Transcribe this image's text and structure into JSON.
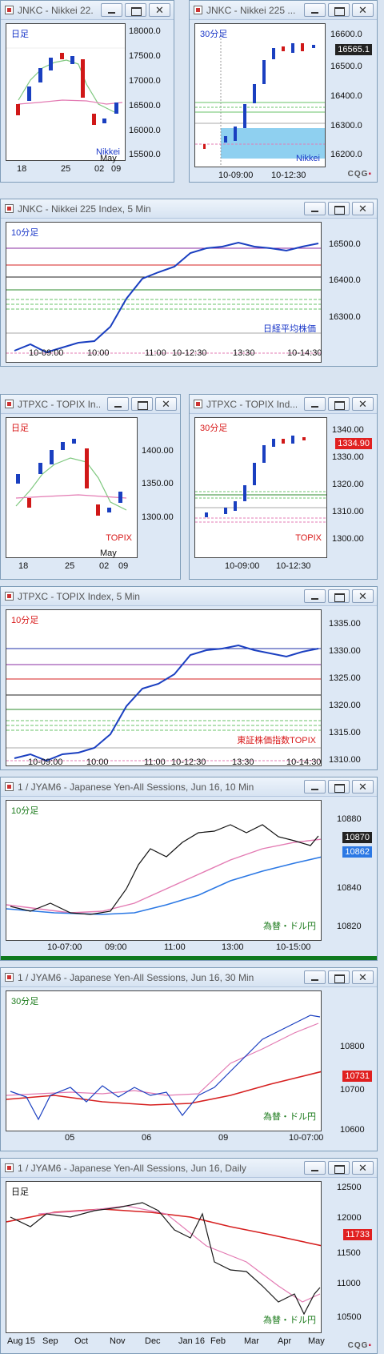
{
  "windows": [
    {
      "id": "w1",
      "title": "JNKC - Nikkei 22...",
      "tf": "日足",
      "tf_color": "blue",
      "name": "Nikkei",
      "name_color": "blue",
      "y_ticks": [
        "18000.0",
        "17500.0",
        "17000.0",
        "16500.0",
        "16000.0",
        "15500.0"
      ],
      "x_ticks": [
        "18",
        "25",
        "02",
        "09"
      ],
      "x_sub": "May"
    },
    {
      "id": "w2",
      "title": "JNKC - Nikkei 225 ...",
      "tf": "30分足",
      "tf_color": "blue",
      "name": "Nikkei",
      "name_color": "blue",
      "y_ticks": [
        "16600.0",
        "16500.0",
        "16400.0",
        "16300.0",
        "16200.0"
      ],
      "price": "16565.1",
      "x_ticks": [
        "10-09:00",
        "10-12:30"
      ],
      "logo": "CQG"
    },
    {
      "id": "w3",
      "title": "JNKC - Nikkei 225 Index, 5 Min",
      "tf": "10分足",
      "tf_color": "blue",
      "name": "日経平均株価",
      "name_color": "blue",
      "y_ticks": [
        "16500.0",
        "16400.0",
        "16300.0"
      ],
      "x_ticks": [
        "10-09:00",
        "10:00",
        "11:00",
        "10-12:30",
        "13:30",
        "10-14:30"
      ]
    },
    {
      "id": "w4",
      "title": "JTPXC - TOPIX In...",
      "tf": "日足",
      "tf_color": "red",
      "name": "TOPIX",
      "name_color": "red",
      "y_ticks": [
        "1400.00",
        "1350.00",
        "1300.00"
      ],
      "x_ticks": [
        "18",
        "25",
        "02",
        "09"
      ],
      "x_sub": "May"
    },
    {
      "id": "w5",
      "title": "JTPXC - TOPIX Ind...",
      "tf": "30分足",
      "tf_color": "red",
      "name": "TOPIX",
      "name_color": "red",
      "y_ticks": [
        "1340.00",
        "1330.00",
        "1320.00",
        "1310.00",
        "1300.00"
      ],
      "price": "1334.90",
      "x_ticks": [
        "10-09:00",
        "10-12:30"
      ]
    },
    {
      "id": "w6",
      "title": "JTPXC - TOPIX Index, 5 Min",
      "tf": "10分足",
      "tf_color": "red",
      "name": "東証株価指数TOPIX",
      "name_color": "red",
      "y_ticks": [
        "1335.00",
        "1330.00",
        "1325.00",
        "1320.00",
        "1315.00",
        "1310.00"
      ],
      "x_ticks": [
        "10-09:00",
        "10:00",
        "11:00",
        "10-12:30",
        "13:30",
        "10-14:30"
      ]
    },
    {
      "id": "w7",
      "title": "1 / JYAM6 - Japanese Yen-All Sessions, Jun 16, 10 Min",
      "tf": "10分足",
      "tf_color": "green",
      "name": "為替・ドル円",
      "name_color": "green",
      "y_ticks": [
        "10880",
        "10860",
        "10840",
        "10820"
      ],
      "price": "10870",
      "price2": "10862",
      "x_ticks": [
        "10-07:00",
        "09:00",
        "11:00",
        "13:00",
        "10-15:00"
      ]
    },
    {
      "id": "w8",
      "title": "1 / JYAM6 - Japanese Yen-All Sessions, Jun 16, 30 Min",
      "tf": "30分足",
      "tf_color": "green",
      "name": "為替・ドル円",
      "name_color": "green",
      "y_ticks": [
        "10800",
        "10700",
        "10600"
      ],
      "price": "10731",
      "x_ticks": [
        "05",
        "06",
        "09",
        "10-07:00"
      ]
    },
    {
      "id": "w9",
      "title": "1 / JYAM6 - Japanese Yen-All Sessions, Jun 16, Daily",
      "tf": "日足",
      "tf_color": "green",
      "name": "為替・ドル円",
      "name_color": "green",
      "y_ticks": [
        "12500",
        "12000",
        "11500",
        "11000",
        "10500"
      ],
      "price": "11733",
      "x_ticks": [
        "Aug 15",
        "Sep",
        "Oct",
        "Nov",
        "Dec",
        "Jan 16",
        "Feb",
        "Mar",
        "Apr",
        "May"
      ],
      "logo": "CQG"
    }
  ],
  "colors": {
    "up": "#1a3fc0",
    "down": "#d01818",
    "ma_green": "#7fc87f",
    "ma_pink": "#e37bb3",
    "ma_red": "#d62020",
    "band": "#8fd0f0"
  }
}
